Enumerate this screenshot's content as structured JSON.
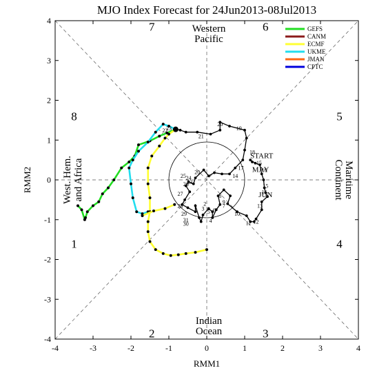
{
  "chart_data": {
    "type": "line",
    "title": "MJO Index Forecast for 24Jun2013-08Jul2013",
    "xlabel": "RMM1",
    "ylabel": "RMM2",
    "xlim": [
      -4,
      4
    ],
    "ylim": [
      -4,
      4
    ],
    "xticks": [
      "-4",
      "-3",
      "-2",
      "-1",
      "0",
      "1",
      "2",
      "3",
      "4"
    ],
    "yticks": [
      "-4",
      "-3",
      "-2",
      "-1",
      "0",
      "1",
      "2",
      "3",
      "4"
    ],
    "unit_circle_radius": 1,
    "phase_numbers": [
      {
        "label": "1",
        "x": -3.5,
        "y": -1.6
      },
      {
        "label": "2",
        "x": -1.45,
        "y": -3.85
      },
      {
        "label": "3",
        "x": 1.55,
        "y": -3.85
      },
      {
        "label": "4",
        "x": 3.5,
        "y": -1.6
      },
      {
        "label": "5",
        "x": 3.5,
        "y": 1.6
      },
      {
        "label": "6",
        "x": 1.55,
        "y": 3.85
      },
      {
        "label": "7",
        "x": -1.45,
        "y": 3.85
      },
      {
        "label": "8",
        "x": -3.5,
        "y": 1.6
      }
    ],
    "regions": {
      "top": [
        "Western",
        "Pacific"
      ],
      "bottom": [
        "Indian",
        "Ocean"
      ],
      "left": [
        "West. Hem.",
        "and Africa"
      ],
      "right": [
        "Maritime",
        "Continent"
      ]
    },
    "month_labels": [
      "START",
      "MAY",
      "JUN"
    ],
    "legend": [
      "GEFS",
      "CANM",
      "ECMF",
      "UKME",
      "JMAN",
      "CPTC"
    ],
    "legend_colors": [
      "#22dd22",
      "#8b1a1a",
      "#ffff33",
      "#22ddee",
      "#ff6611",
      "#0000dd"
    ],
    "observed": {
      "name": "observed",
      "color": "#000000",
      "points": [
        [
          1.2,
          0.45
        ],
        [
          1.15,
          0.5
        ],
        [
          1.28,
          0.42
        ],
        [
          1.4,
          0.38
        ],
        [
          1.45,
          0.15
        ],
        [
          1.5,
          0.0
        ],
        [
          1.52,
          -0.2
        ],
        [
          1.55,
          -0.32
        ],
        [
          1.6,
          -0.42
        ],
        [
          1.45,
          -0.55
        ],
        [
          1.45,
          -0.75
        ],
        [
          1.3,
          -0.98
        ],
        [
          1.25,
          -1.05
        ],
        [
          1.15,
          -1.05
        ],
        [
          1.05,
          -0.9
        ],
        [
          0.8,
          -0.8
        ],
        [
          0.55,
          -0.6
        ],
        [
          0.62,
          -0.4
        ],
        [
          0.45,
          -0.25
        ],
        [
          0.3,
          -0.4
        ],
        [
          0.35,
          -0.62
        ],
        [
          0.25,
          -0.75
        ],
        [
          0.15,
          -0.95
        ],
        [
          0.15,
          -0.8
        ],
        [
          0.05,
          -0.72
        ],
        [
          -0.1,
          -0.88
        ],
        [
          -0.15,
          -1.05
        ],
        [
          -0.2,
          -0.95
        ],
        [
          -0.3,
          -0.65
        ],
        [
          -0.3,
          -0.8
        ],
        [
          -0.5,
          -0.7
        ],
        [
          -0.65,
          -0.62
        ],
        [
          -0.58,
          -0.5
        ],
        [
          -0.45,
          -0.3
        ],
        [
          -0.55,
          -0.15
        ],
        [
          -0.48,
          -0.05
        ],
        [
          -0.35,
          -0.1
        ],
        [
          -0.3,
          0.05
        ],
        [
          -0.08,
          0.25
        ],
        [
          0.05,
          0.1
        ],
        [
          0.2,
          0.18
        ],
        [
          0.4,
          0.15
        ],
        [
          0.6,
          0.15
        ],
        [
          0.75,
          0.3
        ],
        [
          0.95,
          0.5
        ],
        [
          1.0,
          0.75
        ],
        [
          1.05,
          1.05
        ],
        [
          1.0,
          1.25
        ],
        [
          0.6,
          1.35
        ],
        [
          0.35,
          1.45
        ],
        [
          0.35,
          1.25
        ],
        [
          0.1,
          1.15
        ],
        [
          -0.25,
          1.2
        ],
        [
          -0.55,
          1.2
        ],
        [
          -0.7,
          1.25
        ],
        [
          -0.82,
          1.27
        ]
      ],
      "labels": [
        {
          "text": "START",
          "x": 1.45,
          "y": 0.6
        },
        {
          "text": "MAY",
          "x": 1.42,
          "y": 0.25
        },
        {
          "text": "JUN",
          "x": 1.55,
          "y": -0.38
        },
        {
          "text": "20",
          "x": 0.35,
          "y": 1.4
        },
        {
          "text": "19",
          "x": 0.85,
          "y": 1.3
        },
        {
          "text": "21",
          "x": -0.15,
          "y": 1.1
        },
        {
          "text": "22",
          "x": -1.1,
          "y": 1.25
        },
        {
          "text": "23",
          "x": -1.0,
          "y": 1.3
        },
        {
          "text": "18",
          "x": 1.2,
          "y": 0.7
        },
        {
          "text": "15",
          "x": 1.38,
          "y": 0.43
        },
        {
          "text": "16",
          "x": 1.52,
          "y": 0.25
        },
        {
          "text": "17",
          "x": 0.9,
          "y": 0.3
        },
        {
          "text": "14",
          "x": 0.75,
          "y": 0.1
        },
        {
          "text": "15",
          "x": 1.55,
          "y": -0.15
        },
        {
          "text": "16",
          "x": 1.52,
          "y": -0.3
        },
        {
          "text": "13",
          "x": 1.4,
          "y": -0.65
        },
        {
          "text": "12",
          "x": 1.3,
          "y": -1.05
        },
        {
          "text": "11",
          "x": 1.1,
          "y": -1.08
        },
        {
          "text": "10",
          "x": 0.8,
          "y": -0.85
        },
        {
          "text": "9",
          "x": 0.45,
          "y": -0.55
        },
        {
          "text": "8",
          "x": 0.35,
          "y": -0.4
        },
        {
          "text": "7",
          "x": 0.45,
          "y": -0.65
        },
        {
          "text": "6",
          "x": 0.2,
          "y": -0.75
        },
        {
          "text": "5",
          "x": 0.05,
          "y": -0.8
        },
        {
          "text": "4",
          "x": 0.1,
          "y": -1.02
        },
        {
          "text": "3",
          "x": -0.1,
          "y": -0.72
        },
        {
          "text": "2",
          "x": -0.05,
          "y": -0.6
        },
        {
          "text": "1",
          "x": -0.3,
          "y": -0.65
        },
        {
          "text": "29",
          "x": -0.6,
          "y": -0.85
        },
        {
          "text": "31",
          "x": -0.55,
          "y": -1.0
        },
        {
          "text": "30",
          "x": -0.55,
          "y": -1.1
        },
        {
          "text": "28",
          "x": -0.7,
          "y": -0.65
        },
        {
          "text": "27",
          "x": -0.7,
          "y": -0.35
        },
        {
          "text": "26",
          "x": -0.55,
          "y": -0.1
        },
        {
          "text": "24",
          "x": -0.48,
          "y": 0.05
        },
        {
          "text": "25",
          "x": -0.62,
          "y": 0.1
        },
        {
          "text": "20",
          "x": -0.25,
          "y": 0.2
        },
        {
          "text": "23",
          "x": -0.45,
          "y": -0.05
        }
      ]
    },
    "series": [
      {
        "name": "GEFS",
        "color": "#22dd22",
        "points": [
          [
            -0.82,
            1.27
          ],
          [
            -1.05,
            1.18
          ],
          [
            -1.25,
            1.1
          ],
          [
            -1.5,
            0.98
          ],
          [
            -1.8,
            0.88
          ],
          [
            -1.9,
            0.6
          ],
          [
            -2.05,
            0.45
          ],
          [
            -2.25,
            0.3
          ],
          [
            -2.45,
            0.0
          ],
          [
            -2.6,
            -0.2
          ],
          [
            -2.75,
            -0.35
          ],
          [
            -2.85,
            -0.55
          ],
          [
            -3.0,
            -0.65
          ],
          [
            -3.15,
            -0.8
          ],
          [
            -3.2,
            -0.95
          ],
          [
            -3.22,
            -1.0
          ],
          [
            -3.3,
            -0.75
          ],
          [
            -3.4,
            -0.65
          ]
        ]
      },
      {
        "name": "UKME",
        "color": "#22ddee",
        "points": [
          [
            -0.82,
            1.27
          ],
          [
            -1.0,
            1.35
          ],
          [
            -1.15,
            1.4
          ],
          [
            -1.35,
            1.2
          ],
          [
            -1.55,
            0.95
          ],
          [
            -1.8,
            0.72
          ],
          [
            -1.95,
            0.5
          ],
          [
            -2.05,
            0.3
          ],
          [
            -2.0,
            -0.1
          ],
          [
            -1.95,
            -0.45
          ],
          [
            -1.85,
            -0.8
          ],
          [
            -1.7,
            -0.85
          ],
          [
            -1.55,
            -0.8
          ]
        ]
      },
      {
        "name": "ECMF",
        "color": "#ffff33",
        "points": [
          [
            -0.82,
            1.27
          ],
          [
            -1.0,
            1.15
          ],
          [
            -1.1,
            1.05
          ],
          [
            -1.25,
            0.85
          ],
          [
            -1.45,
            0.6
          ],
          [
            -1.55,
            0.3
          ],
          [
            -1.55,
            -0.1
          ],
          [
            -1.5,
            -0.45
          ],
          [
            -1.5,
            -0.8
          ],
          [
            -1.55,
            -1.05
          ],
          [
            -1.55,
            -1.3
          ],
          [
            -1.5,
            -1.55
          ],
          [
            -1.35,
            -1.75
          ],
          [
            -1.15,
            -1.85
          ],
          [
            -0.95,
            -1.9
          ],
          [
            -0.75,
            -1.88
          ],
          [
            -0.55,
            -1.85
          ],
          [
            -0.3,
            -1.82
          ],
          [
            0.0,
            -1.75
          ]
        ]
      },
      {
        "name": "ECMF branch",
        "color": "#ffff33",
        "points": [
          [
            -1.7,
            -0.9
          ],
          [
            -1.4,
            -0.78
          ],
          [
            -1.1,
            -0.72
          ],
          [
            -0.85,
            -0.62
          ]
        ]
      }
    ]
  }
}
